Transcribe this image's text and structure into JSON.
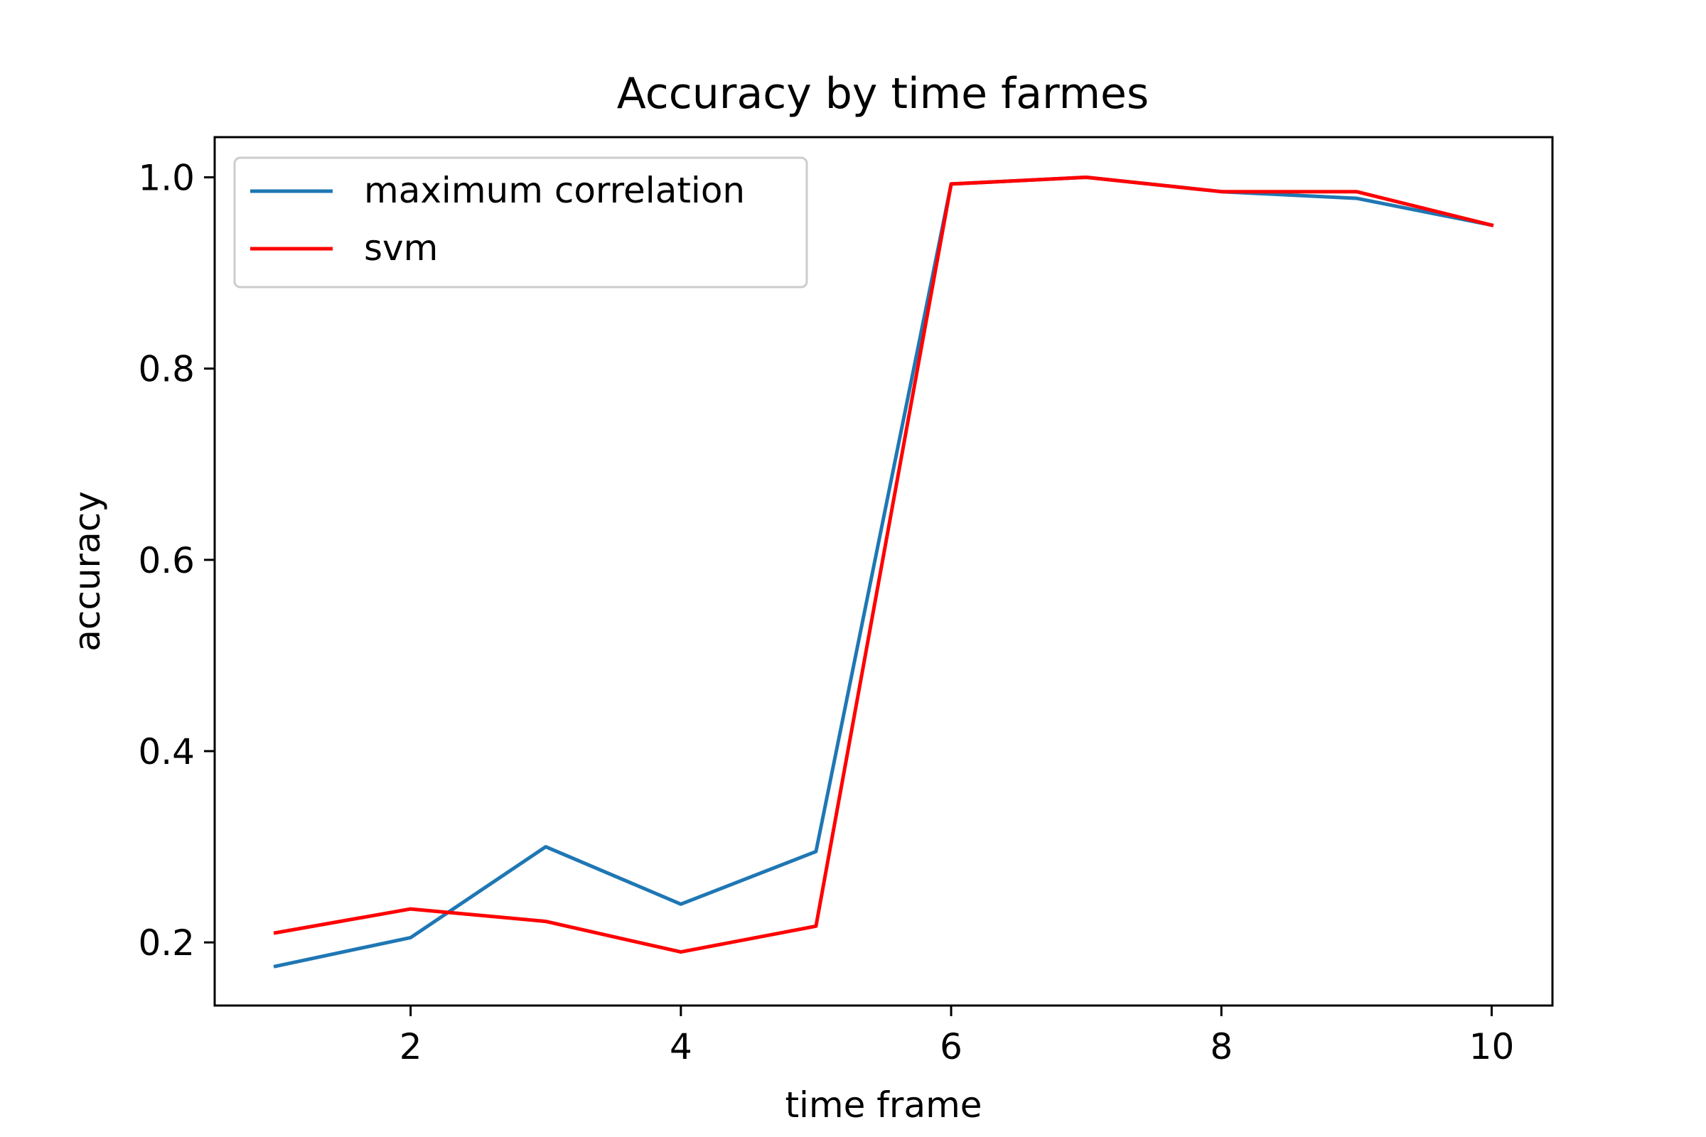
{
  "chart_data": {
    "type": "line",
    "title": "Accuracy by time farmes",
    "xlabel": "time frame",
    "ylabel": "accuracy",
    "x": [
      1,
      2,
      3,
      4,
      5,
      6,
      7,
      8,
      9,
      10
    ],
    "xlim": [
      0.55,
      10.45
    ],
    "ylim": [
      0.134,
      1.042
    ],
    "xticks": [
      2,
      4,
      6,
      8,
      10
    ],
    "xtick_labels": [
      "2",
      "4",
      "6",
      "8",
      "10"
    ],
    "yticks": [
      0.2,
      0.4,
      0.6,
      0.8,
      1.0
    ],
    "ytick_labels": [
      "0.2",
      "0.4",
      "0.6",
      "0.8",
      "1.0"
    ],
    "grid": false,
    "legend_position": "top-left",
    "series": [
      {
        "name": "maximum correlation",
        "color": "#1f77b4",
        "values": [
          0.175,
          0.205,
          0.3,
          0.24,
          0.295,
          0.993,
          1.0,
          0.985,
          0.978,
          0.95
        ]
      },
      {
        "name": "svm",
        "color": "#ff0000",
        "values": [
          0.21,
          0.235,
          0.222,
          0.19,
          0.217,
          0.993,
          1.0,
          0.985,
          0.985,
          0.95
        ]
      }
    ]
  }
}
